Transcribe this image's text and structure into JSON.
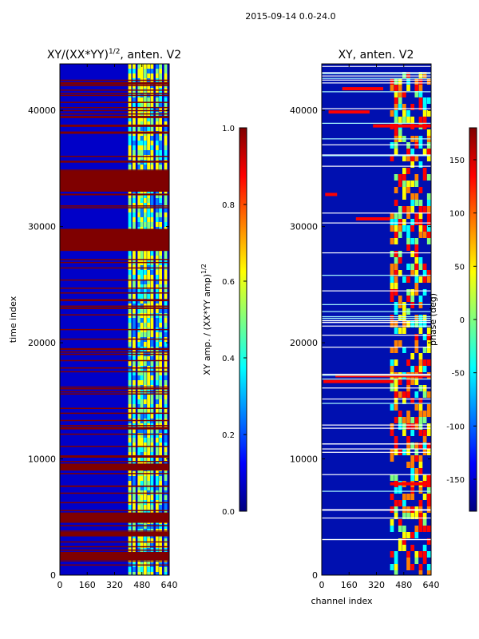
{
  "figure_title": "2015-09-14 0.0-24.0",
  "colors": {
    "jet": [
      "#00007f",
      "#0000ff",
      "#007fff",
      "#00ffff",
      "#7fff7f",
      "#ffff00",
      "#ff7f00",
      "#ff0000",
      "#7f0000"
    ],
    "frame": "#000000"
  },
  "chart_data": [
    {
      "id": "left",
      "type": "heatmap",
      "title": "XY/(XX*YY)",
      "title_superscript": "1/2",
      "title_suffix": ", anten. V2",
      "xlabel": "",
      "ylabel": "time index",
      "xlim": [
        0,
        640
      ],
      "ylim": [
        0,
        44000
      ],
      "xticks": [
        "0",
        "160",
        "320",
        "480",
        "640"
      ],
      "yticks": [
        "0",
        "10000",
        "20000",
        "30000",
        "40000"
      ],
      "colorbar": {
        "label": "XY amp. / (XX*YY amp)",
        "label_superscript": "1/2",
        "range": [
          0.0,
          1.0
        ],
        "ticks": [
          "0.0",
          "0.2",
          "0.4",
          "0.6",
          "0.8",
          "1.0"
        ]
      },
      "saturated_rows_value": 1.0,
      "saturated_blocks": [
        [
          33000,
          34800
        ],
        [
          27900,
          29800
        ],
        [
          9000,
          9600
        ],
        [
          1300,
          2000
        ],
        [
          4500,
          5300
        ]
      ],
      "bright_channel_band": [
        400,
        640
      ]
    },
    {
      "id": "right",
      "type": "heatmap",
      "title": "XY, anten. V2",
      "xlabel": "channel index",
      "ylabel": "",
      "xlim": [
        0,
        640
      ],
      "ylim": [
        0,
        44000
      ],
      "xticks": [
        "0",
        "160",
        "320",
        "480",
        "640"
      ],
      "yticks": [
        "0",
        "10000",
        "20000",
        "30000",
        "40000"
      ],
      "colorbar": {
        "label": "phase (deg)",
        "range": [
          -180,
          180
        ],
        "ticks": [
          "-150",
          "-100",
          "-50",
          "0",
          "50",
          "100",
          "150"
        ]
      },
      "bright_channel_band": [
        400,
        640
      ]
    }
  ]
}
